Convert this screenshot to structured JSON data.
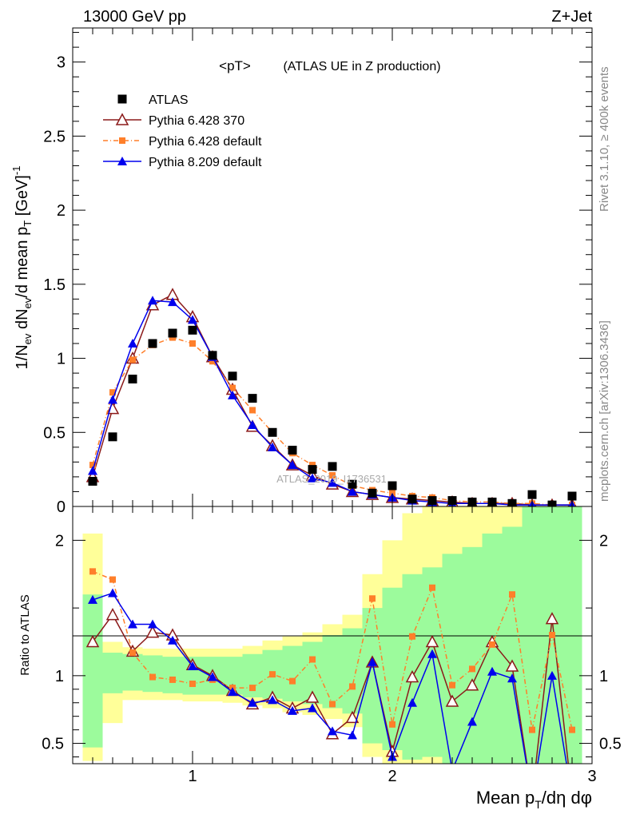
{
  "header": {
    "left": "13000 GeV pp",
    "right": "Z+Jet"
  },
  "side_labels": {
    "rivet": "Rivet 3.1.10, ≥ 400k events",
    "mcplots": "mcplots.cern.ch [arXiv:1306.3436]"
  },
  "watermark": "ATLAS_2019_I1736531",
  "colors": {
    "atlas": "#000000",
    "p6_370": "#8b1a1a",
    "p6_default": "#ff7f2a",
    "p8": "#0000ee",
    "band_green": "#9cfb9c",
    "band_yellow": "#ffff99"
  },
  "chart_data": [
    {
      "type": "scatter",
      "title": "<pT>",
      "subtitle": "(ATLAS UE in Z production)",
      "ylabel": "1/N_ev dN_ev/d mean p_T [GeV]^-1",
      "xlabel": "",
      "xlim": [
        0.4,
        3.0
      ],
      "ylim": [
        0,
        3.23
      ],
      "y_ticks": [
        "0",
        "0.5",
        "1",
        "1.5",
        "2",
        "2.5",
        "3"
      ],
      "legend": {
        "position": "top-left",
        "entries": [
          "ATLAS",
          "Pythia 6.428 370",
          "Pythia 6.428 default",
          "Pythia 8.209 default"
        ]
      },
      "x": [
        0.5,
        0.6,
        0.7,
        0.8,
        0.9,
        1.0,
        1.1,
        1.2,
        1.3,
        1.4,
        1.5,
        1.6,
        1.7,
        1.8,
        1.9,
        2.0,
        2.1,
        2.2,
        2.3,
        2.4,
        2.5,
        2.6,
        2.7,
        2.8,
        2.9
      ],
      "series": [
        {
          "name": "ATLAS",
          "values": [
            0.17,
            0.47,
            0.86,
            1.1,
            1.17,
            1.19,
            1.02,
            0.88,
            0.73,
            0.5,
            0.38,
            0.25,
            0.27,
            0.15,
            0.09,
            0.14,
            0.05,
            0.04,
            0.04,
            0.03,
            0.03,
            0.02,
            0.08,
            0.01,
            0.07
          ]
        },
        {
          "name": "Pythia 6.428 370",
          "values": [
            0.2,
            0.66,
            1.0,
            1.36,
            1.43,
            1.28,
            1.01,
            0.79,
            0.54,
            0.41,
            0.28,
            0.21,
            0.15,
            0.1,
            0.08,
            0.06,
            0.05,
            0.04,
            0.03,
            0.02,
            0.02,
            0.02,
            0.01,
            0.01,
            0.01
          ]
        },
        {
          "name": "Pythia 6.428 default",
          "values": [
            0.28,
            0.77,
            0.99,
            1.09,
            1.14,
            1.1,
            0.98,
            0.8,
            0.65,
            0.5,
            0.36,
            0.28,
            0.21,
            0.14,
            0.11,
            0.09,
            0.07,
            0.06,
            0.04,
            0.03,
            0.03,
            0.02,
            0.02,
            0.01,
            0.01
          ]
        },
        {
          "name": "Pythia 8.209 default",
          "values": [
            0.24,
            0.72,
            1.1,
            1.39,
            1.38,
            1.26,
            1.01,
            0.75,
            0.55,
            0.4,
            0.28,
            0.19,
            0.16,
            0.1,
            0.08,
            0.06,
            0.04,
            0.03,
            0.02,
            0.02,
            0.02,
            0.01,
            0.01,
            0.01,
            0.01
          ]
        }
      ]
    },
    {
      "type": "line",
      "xlabel": "Mean p_T/dη dφ",
      "ylabel": "Ratio to ATLAS",
      "xlim": [
        0.4,
        3.0
      ],
      "ylim": [
        0.35,
        2.25
      ],
      "x_ticks": [
        "1",
        "2",
        "3"
      ],
      "y_ticks": [
        "0.5",
        "1",
        "2"
      ],
      "x": [
        0.5,
        0.6,
        0.7,
        0.8,
        0.9,
        1.0,
        1.1,
        1.2,
        1.3,
        1.4,
        1.5,
        1.6,
        1.7,
        1.8,
        1.9,
        2.0,
        2.1,
        2.2,
        2.3,
        2.4,
        2.5,
        2.6,
        2.7,
        2.8,
        2.9
      ],
      "bands": {
        "green_low": [
          0.47,
          0.87,
          0.89,
          0.88,
          0.87,
          0.86,
          0.86,
          0.86,
          0.84,
          0.83,
          0.81,
          0.79,
          0.76,
          0.72,
          0.5,
          0.45,
          0.38,
          0.4,
          0.35,
          0.35,
          0.35,
          0.35,
          0.35,
          0.35,
          0.35
        ],
        "green_high": [
          1.6,
          1.17,
          1.16,
          1.15,
          1.14,
          1.14,
          1.14,
          1.14,
          1.16,
          1.19,
          1.22,
          1.25,
          1.3,
          1.35,
          1.5,
          1.65,
          1.75,
          1.8,
          1.9,
          1.95,
          2.05,
          2.1,
          2.25,
          2.25,
          2.25
        ],
        "yellow_low": [
          0.37,
          0.65,
          0.82,
          0.82,
          0.82,
          0.81,
          0.81,
          0.8,
          0.78,
          0.76,
          0.73,
          0.71,
          0.68,
          0.62,
          0.4,
          0.35,
          0.35,
          0.35,
          0.35,
          0.35,
          0.35,
          0.35,
          0.35,
          0.35,
          0.35
        ],
        "yellow_high": [
          2.05,
          1.25,
          1.21,
          1.2,
          1.2,
          1.2,
          1.2,
          1.2,
          1.22,
          1.26,
          1.29,
          1.32,
          1.38,
          1.45,
          1.75,
          2.0,
          2.2,
          2.25,
          2.25,
          2.25,
          2.25,
          2.25,
          2.25,
          2.25,
          1.75
        ]
      },
      "series": [
        {
          "name": "Pythia 6.428 370",
          "values": [
            1.25,
            1.45,
            1.18,
            1.32,
            1.3,
            1.08,
            1.0,
            0.89,
            0.79,
            0.84,
            0.76,
            0.84,
            0.57,
            0.69,
            1.1,
            0.44,
            0.99,
            1.25,
            0.81,
            0.93,
            1.25,
            1.07,
            0.1,
            1.42,
            0.1
          ]
        },
        {
          "name": "Pythia 6.428 default",
          "values": [
            1.77,
            1.71,
            1.17,
            0.99,
            0.97,
            0.94,
            0.97,
            0.91,
            0.91,
            1.01,
            0.96,
            1.12,
            0.79,
            0.92,
            1.57,
            0.64,
            1.29,
            1.65,
            0.93,
            1.05,
            1.23,
            1.6,
            0.6,
            1.3,
            0.6
          ]
        },
        {
          "name": "Pythia 8.209 default",
          "values": [
            1.56,
            1.61,
            1.38,
            1.38,
            1.26,
            1.07,
            0.99,
            0.88,
            0.8,
            0.82,
            0.74,
            0.76,
            0.59,
            0.56,
            1.1,
            0.4,
            0.8,
            1.16,
            0.3,
            0.66,
            1.03,
            0.98,
            0.1,
            1.0,
            0.1
          ]
        }
      ]
    }
  ]
}
